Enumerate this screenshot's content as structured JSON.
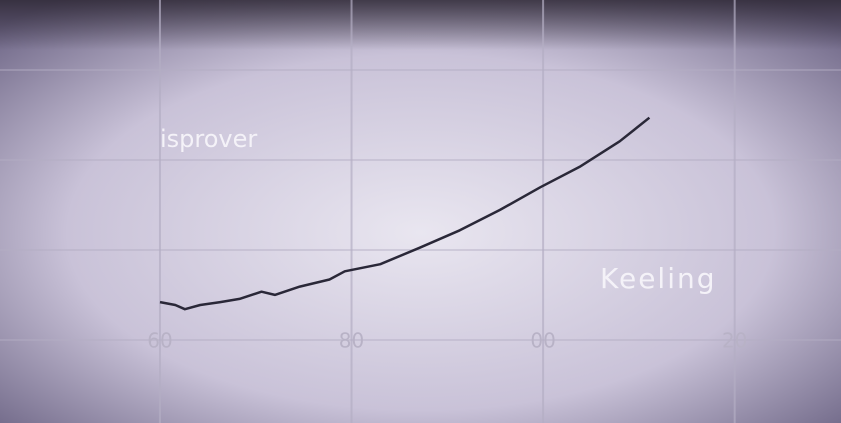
{
  "chart_data": {
    "type": "line",
    "annotations": [
      "isprover",
      "Keeling"
    ],
    "x": [
      1960,
      1961.6,
      1962.6,
      1964.2,
      1966.3,
      1968.3,
      1970.6,
      1972,
      1974.6,
      1977.7,
      1979.3,
      1983,
      1987.1,
      1991.3,
      1995.5,
      1999.7,
      2003.8,
      2008,
      2011.1
    ],
    "series": [
      {
        "color": "#2a2838",
        "values": [
          315,
          313.8,
          312.1,
          313.8,
          315,
          316.3,
          319.2,
          317.9,
          321.3,
          324.2,
          327.5,
          330.4,
          337.1,
          344.2,
          352.5,
          361.7,
          370,
          380.4,
          390
        ]
      }
    ],
    "xlim": [
      1943.3,
      2031.1
    ],
    "ylim": [
      265.8,
      437.9
    ],
    "xticks": [
      {
        "value": 1960,
        "label": "60"
      },
      {
        "value": 1980,
        "label": "80"
      },
      {
        "value": 2000,
        "label": "00"
      },
      {
        "value": 2020,
        "label": "20"
      }
    ],
    "grid": true
  }
}
